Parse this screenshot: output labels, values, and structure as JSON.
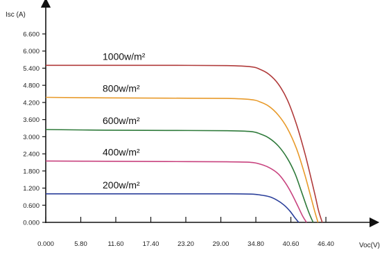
{
  "chart_data": {
    "type": "line",
    "title": "",
    "xlabel": "Voc(V)",
    "ylabel": "Isc (A)",
    "xlim": [
      0,
      48
    ],
    "ylim": [
      0,
      7.4
    ],
    "x_ticks": [
      "0.000",
      "5.80",
      "11.60",
      "17.40",
      "23.20",
      "29.00",
      "34.80",
      "40.60",
      "46.40"
    ],
    "x_tick_values": [
      0,
      5.8,
      11.6,
      17.4,
      23.2,
      29.0,
      34.8,
      40.6,
      46.4
    ],
    "y_ticks": [
      "0.000",
      "0.600",
      "1.200",
      "1.800",
      "2.400",
      "3.000",
      "3.600",
      "4.200",
      "4.800",
      "5.400",
      "6.000",
      "6.600"
    ],
    "y_tick_values": [
      0,
      0.6,
      1.2,
      1.8,
      2.4,
      3.0,
      3.6,
      4.2,
      4.8,
      5.4,
      6.0,
      6.6
    ],
    "grid": false,
    "series": [
      {
        "name": "1000w/m²",
        "color": "#b03a3a",
        "x": [
          0,
          10,
          20,
          30,
          34,
          35.5,
          37,
          38.5,
          40,
          41.5,
          43,
          44.5,
          45.2,
          45.8
        ],
        "y": [
          5.5,
          5.5,
          5.5,
          5.49,
          5.45,
          5.36,
          5.18,
          4.85,
          4.3,
          3.45,
          2.35,
          1.05,
          0.4,
          0
        ]
      },
      {
        "name": "800w/m²",
        "color": "#e89a2a",
        "x": [
          0,
          10,
          20,
          30,
          34,
          35.5,
          37,
          38.5,
          40,
          41.5,
          42.8,
          43.9,
          44.6,
          45.1
        ],
        "y": [
          4.38,
          4.36,
          4.35,
          4.34,
          4.3,
          4.22,
          4.06,
          3.76,
          3.3,
          2.6,
          1.75,
          0.9,
          0.35,
          0
        ]
      },
      {
        "name": "600w/m²",
        "color": "#2e7a3a",
        "x": [
          0,
          10,
          20,
          30,
          34,
          35.5,
          37,
          38.5,
          40,
          41.3,
          42.4,
          43.3,
          43.9,
          44.3
        ],
        "y": [
          3.25,
          3.23,
          3.22,
          3.21,
          3.18,
          3.1,
          2.95,
          2.68,
          2.25,
          1.7,
          1.05,
          0.5,
          0.18,
          0
        ]
      },
      {
        "name": "400w/m²",
        "color": "#c8427e",
        "x": [
          0,
          10,
          20,
          30,
          34,
          35.5,
          37,
          38.5,
          39.7,
          40.8,
          41.8,
          42.6,
          43.2
        ],
        "y": [
          2.15,
          2.14,
          2.13,
          2.12,
          2.1,
          2.04,
          1.92,
          1.7,
          1.38,
          0.98,
          0.55,
          0.2,
          0
        ]
      },
      {
        "name": "200w/m²",
        "color": "#2a3f9a",
        "x": [
          0,
          10,
          20,
          30,
          34,
          35.5,
          37,
          38.3,
          39.5,
          40.5,
          41.3,
          41.9
        ],
        "y": [
          1.0,
          1.0,
          1.0,
          1.0,
          0.99,
          0.96,
          0.9,
          0.78,
          0.6,
          0.38,
          0.15,
          0
        ]
      }
    ]
  }
}
